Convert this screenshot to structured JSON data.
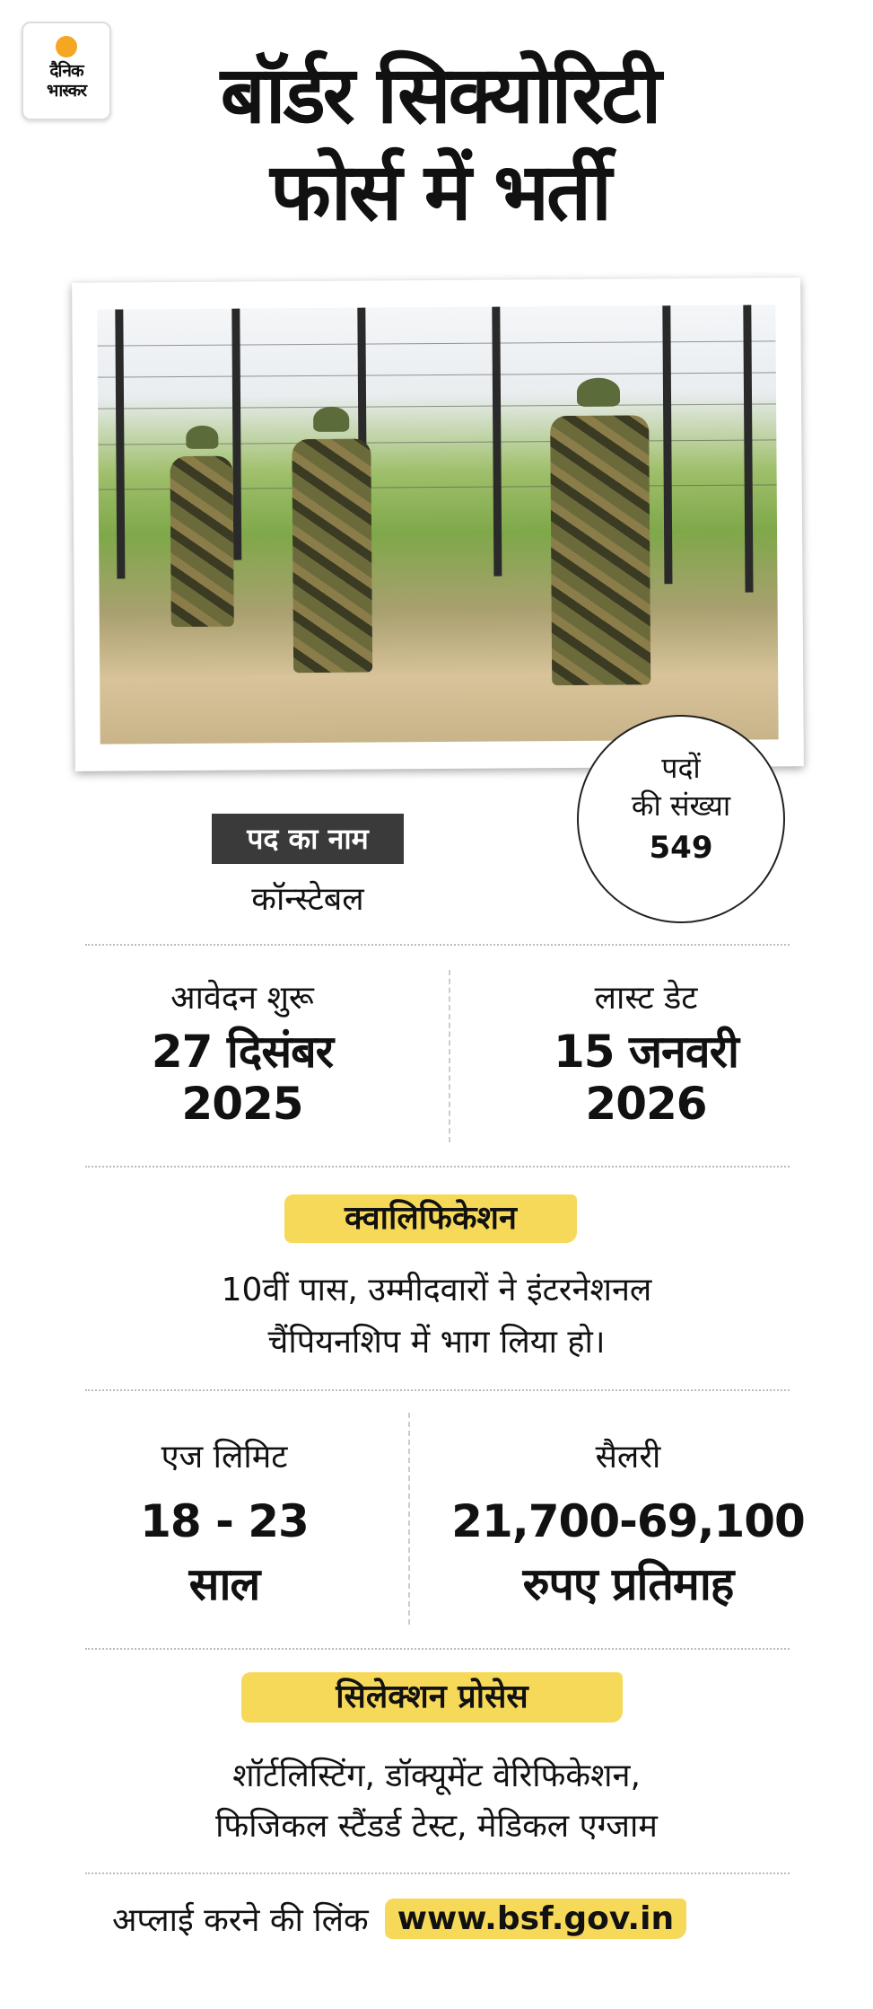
{
  "brand": {
    "logo_line1": "दैनिक",
    "logo_line2": "भास्कर",
    "accent": "#f5a623"
  },
  "title": {
    "line1": "बॉर्डर सिक्योरिटी",
    "line2": "फोर्स में भर्ती"
  },
  "posts": {
    "label_line1": "पदों",
    "label_line2": "की संख्या",
    "value": "549"
  },
  "post_name": {
    "label": "पद का नाम",
    "value": "कॉन्स्टेबल"
  },
  "dates": {
    "start_label": "आवेदन शुरू",
    "start_line1": "27 दिसंबर",
    "start_line2": "2025",
    "last_label": "लास्ट डेट",
    "last_line1": "15 जनवरी",
    "last_line2": "2026"
  },
  "qualification": {
    "label": "क्वालिफिकेशन",
    "line1": "10वीं पास, उम्मीदवारों ने इंटरनेशनल",
    "line2": "चैंपियनशिप में भाग लिया हो।"
  },
  "age": {
    "label": "एज लिमिट",
    "line1": "18 - 23",
    "line2": "साल"
  },
  "salary": {
    "label": "सैलरी",
    "line1": "21,700-69,100",
    "line2": "रुपए प्रतिमाह"
  },
  "selection": {
    "label": "सिलेक्शन प्रोसेस",
    "line1": "शॉर्टलिस्टिंग, डॉक्यूमेंट वेरिफिकेशन,",
    "line2": "फिजिकल स्टैंडर्ड टेस्ट, मेडिकल एग्जाम"
  },
  "apply": {
    "label": "अप्लाई करने की लिंक",
    "link": "www.bsf.gov.in",
    "highlight": "#f7d95a"
  }
}
